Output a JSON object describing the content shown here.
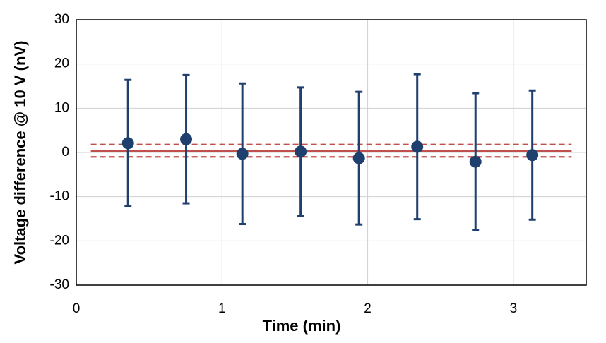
{
  "chart_data": {
    "type": "scatter",
    "x_label": "Time (min)",
    "y_label": "Voltage difference @ 10 V (nV)",
    "x": [
      0.355,
      0.754,
      1.14,
      1.54,
      1.94,
      2.34,
      2.74,
      3.13
    ],
    "series": [
      {
        "color": "#1f3f6e",
        "values": [
          2.1,
          3.0,
          -0.3,
          0.2,
          -1.3,
          1.3,
          -2.1,
          -0.6
        ],
        "errors": [
          14.3,
          14.5,
          15.9,
          14.5,
          15.0,
          16.4,
          15.5,
          14.6
        ]
      }
    ],
    "reference_lines": [
      {
        "value": 0.3,
        "style": "solid",
        "color": "#c0504d",
        "xrange": [
          0.1,
          3.4
        ]
      },
      {
        "value": 1.8,
        "style": "dashed",
        "color": "#c0504d",
        "xrange": [
          0.1,
          3.4
        ]
      },
      {
        "value": -1.0,
        "style": "dashed",
        "color": "#c0504d",
        "xrange": [
          0.1,
          3.4
        ]
      }
    ],
    "xlim": [
      0,
      3.5
    ],
    "xticks": [
      0,
      1,
      2,
      3
    ],
    "ylim": [
      -30,
      30
    ],
    "yticks": [
      -30,
      -20,
      -10,
      0,
      10,
      20,
      30
    ],
    "grid": true
  }
}
